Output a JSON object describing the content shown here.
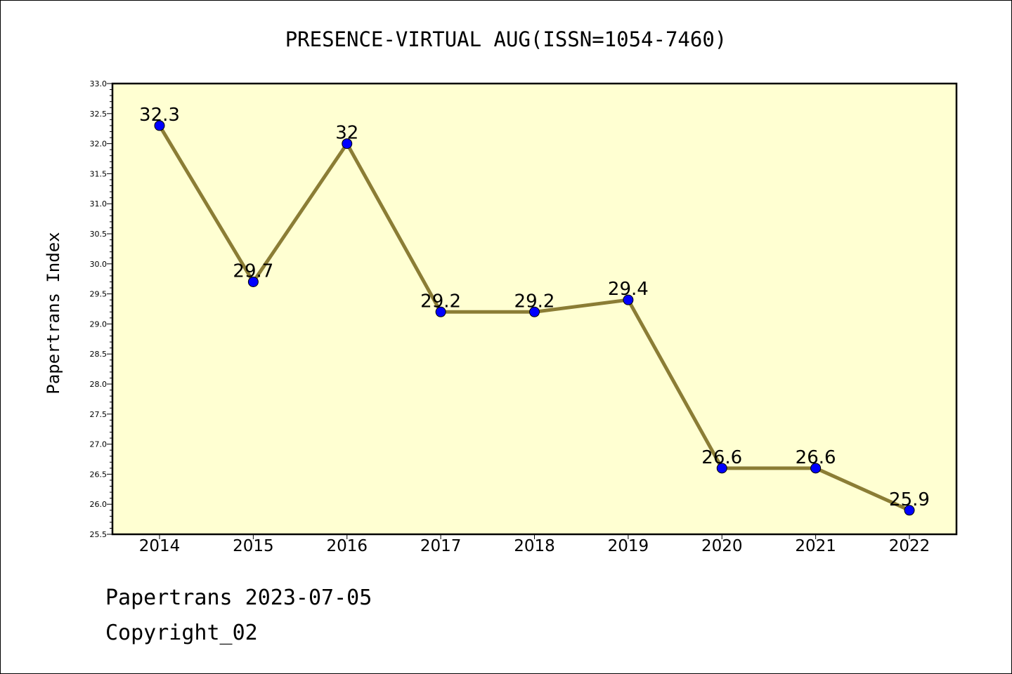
{
  "footer": {
    "line1": "Papertrans 2023-07-05",
    "line2": "Copyright_02"
  },
  "chart_data": {
    "type": "line",
    "title": "PRESENCE-VIRTUAL AUG(ISSN=1054-7460)",
    "xlabel": "",
    "ylabel": "Papertrans Index",
    "x": [
      "2014",
      "2015",
      "2016",
      "2017",
      "2018",
      "2019",
      "2020",
      "2021",
      "2022"
    ],
    "series": [
      {
        "values": [
          32.3,
          29.7,
          32.0,
          29.2,
          29.2,
          29.4,
          26.6,
          26.6,
          25.9
        ]
      }
    ],
    "data_labels": [
      "32.3",
      "29.7",
      "32",
      "29.2",
      "29.2",
      "29.4",
      "26.6",
      "26.6",
      "25.9"
    ],
    "ylim": [
      25.5,
      33.0
    ],
    "yticks": [
      "25.5",
      "26.0",
      "26.5",
      "27.0",
      "27.5",
      "28.0",
      "28.5",
      "29.0",
      "29.5",
      "30.0",
      "30.5",
      "31.0",
      "31.5",
      "32.0",
      "32.5",
      "33.0"
    ],
    "grid": false,
    "legend": "none",
    "colors": {
      "plot_background": "#ffffd2",
      "line": "#8b7d35",
      "marker": "#0000ff"
    }
  }
}
